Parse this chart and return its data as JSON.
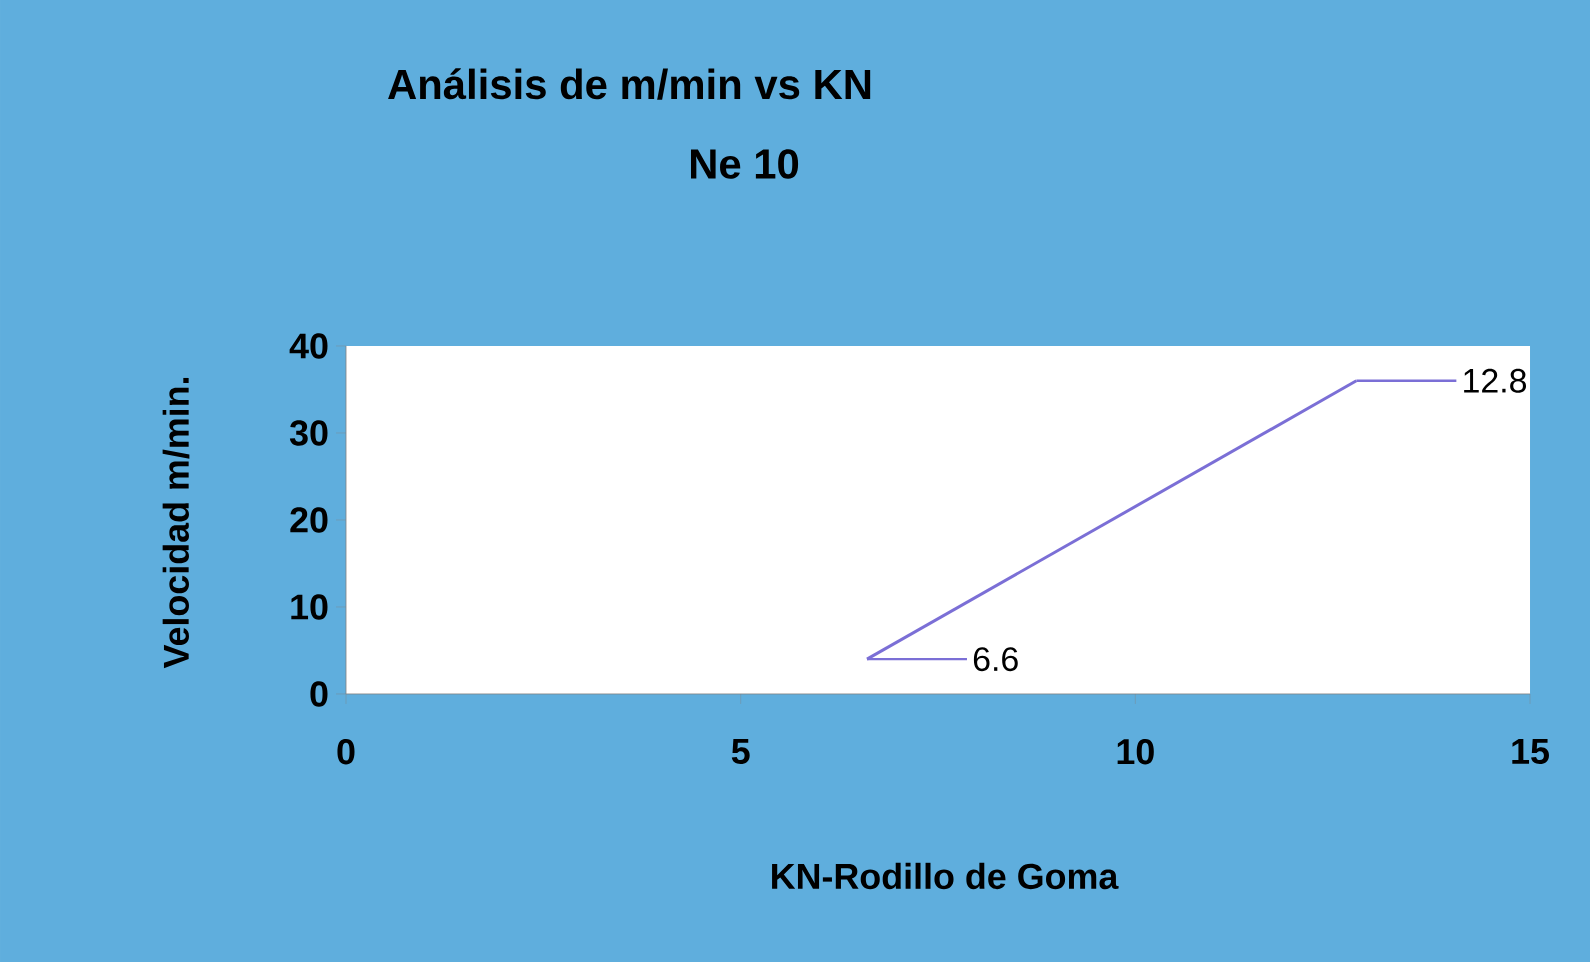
{
  "chart_data": {
    "type": "line",
    "title": "Análisis de m/min vs KN",
    "subtitle": "Ne 10",
    "xlabel": "KN-Rodillo de Goma",
    "ylabel": "Velocidad  m/min.",
    "x": [
      6.6,
      12.8
    ],
    "series": [
      {
        "color": "#7b6fd6",
        "values": [
          4,
          36
        ]
      }
    ],
    "annotations": [
      "6.6",
      "12.8"
    ],
    "xlim": [
      0,
      15
    ],
    "xticks": [
      0,
      5,
      10,
      15
    ],
    "ylim": [
      0,
      40
    ],
    "yticks": [
      0,
      10,
      20,
      30,
      40
    ],
    "grid": false,
    "marker": "none",
    "line_style": "solid"
  }
}
